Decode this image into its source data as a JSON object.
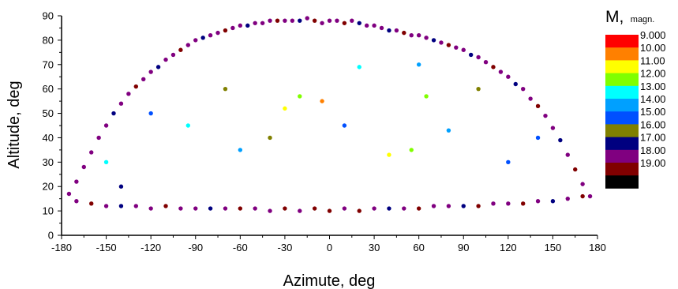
{
  "chart_data": {
    "type": "scatter",
    "title": "",
    "xlabel": "Azimute, deg",
    "ylabel": "Altitude, deg",
    "xlim": [
      -180,
      180
    ],
    "ylim": [
      0,
      90
    ],
    "x_ticks": [
      -180,
      -150,
      -120,
      -90,
      -60,
      -30,
      0,
      30,
      60,
      90,
      120,
      150,
      180
    ],
    "y_ticks": [
      0,
      10,
      20,
      30,
      40,
      50,
      60,
      70,
      80,
      90
    ],
    "x_tick_labels": [
      "-180",
      "-150",
      "-120",
      "-90",
      "-60",
      "-30",
      "0",
      "30",
      "60",
      "90",
      "120",
      "150",
      "180"
    ],
    "y_tick_labels": [
      "0",
      "10",
      "20",
      "30",
      "40",
      "50",
      "60",
      "70",
      "80",
      "90"
    ],
    "grid": false,
    "legend": {
      "placement": "right",
      "title_main": "M,",
      "title_sub": "magn.",
      "bins": [
        {
          "label": "9.000",
          "color": "#ff0000"
        },
        {
          "label": "10.00",
          "color": "#ff8000"
        },
        {
          "label": "11.00",
          "color": "#ffff00"
        },
        {
          "label": "12.00",
          "color": "#80ff00"
        },
        {
          "label": "13.00",
          "color": "#00ffff"
        },
        {
          "label": "14.00",
          "color": "#00a0ff"
        },
        {
          "label": "15.00",
          "color": "#0050ff"
        },
        {
          "label": "16.00",
          "color": "#808000"
        },
        {
          "label": "17.00",
          "color": "#000080"
        },
        {
          "label": "18.00",
          "color": "#800080"
        },
        {
          "label": "19.00",
          "color": "#800000"
        },
        {
          "label": "",
          "color": "#000000"
        }
      ]
    },
    "points": [
      [
        -175,
        17,
        18.5
      ],
      [
        -170,
        22,
        18.2
      ],
      [
        -165,
        28,
        18.7
      ],
      [
        -160,
        34,
        18.1
      ],
      [
        -155,
        40,
        18.9
      ],
      [
        -150,
        45,
        18.3
      ],
      [
        -145,
        50,
        17.4
      ],
      [
        -140,
        54,
        18.6
      ],
      [
        -135,
        58,
        18.2
      ],
      [
        -130,
        61,
        19.3
      ],
      [
        -125,
        64,
        18.4
      ],
      [
        -120,
        67,
        18.1
      ],
      [
        -115,
        69,
        17.6
      ],
      [
        -110,
        72,
        18.8
      ],
      [
        -105,
        74,
        18.3
      ],
      [
        -100,
        76,
        19.1
      ],
      [
        -95,
        78,
        18.5
      ],
      [
        -90,
        80,
        18.2
      ],
      [
        -85,
        81,
        17.9
      ],
      [
        -80,
        82,
        18.6
      ],
      [
        -75,
        83,
        18.1
      ],
      [
        -70,
        84,
        19.4
      ],
      [
        -65,
        85,
        18.3
      ],
      [
        -60,
        86,
        18.7
      ],
      [
        -55,
        86,
        17.5
      ],
      [
        -50,
        87,
        18.2
      ],
      [
        -45,
        87,
        18.9
      ],
      [
        -40,
        88,
        18.4
      ],
      [
        -35,
        88,
        19.2
      ],
      [
        -30,
        88,
        18.1
      ],
      [
        -25,
        88,
        18.6
      ],
      [
        -20,
        88,
        17.8
      ],
      [
        -15,
        89,
        18.3
      ],
      [
        -10,
        88,
        19.5
      ],
      [
        -5,
        87,
        18.2
      ],
      [
        0,
        88,
        18.5
      ],
      [
        5,
        88,
        18.1
      ],
      [
        10,
        87,
        19.2
      ],
      [
        15,
        88,
        18.4
      ],
      [
        20,
        87,
        17.7
      ],
      [
        25,
        86,
        18.6
      ],
      [
        30,
        86,
        18.2
      ],
      [
        35,
        85,
        18.9
      ],
      [
        40,
        84,
        17.1
      ],
      [
        45,
        84,
        18.3
      ],
      [
        50,
        83,
        19.1
      ],
      [
        55,
        82,
        18.4
      ],
      [
        60,
        82,
        18.2
      ],
      [
        65,
        81,
        18.7
      ],
      [
        70,
        80,
        17.6
      ],
      [
        75,
        79,
        18.5
      ],
      [
        80,
        78,
        19.3
      ],
      [
        85,
        77,
        18.1
      ],
      [
        90,
        76,
        18.4
      ],
      [
        95,
        74,
        17.9
      ],
      [
        100,
        73,
        18.6
      ],
      [
        105,
        71,
        18.2
      ],
      [
        110,
        69,
        19.2
      ],
      [
        115,
        67,
        18.3
      ],
      [
        120,
        65,
        18.8
      ],
      [
        125,
        62,
        17.4
      ],
      [
        130,
        60,
        18.5
      ],
      [
        135,
        56,
        18.1
      ],
      [
        140,
        53,
        19.4
      ],
      [
        145,
        49,
        18.3
      ],
      [
        150,
        44,
        18.7
      ],
      [
        155,
        39,
        17.8
      ],
      [
        160,
        33,
        18.4
      ],
      [
        165,
        27,
        19.1
      ],
      [
        170,
        21,
        18.2
      ],
      [
        175,
        16,
        18.6
      ],
      [
        -170,
        14,
        18.3
      ],
      [
        -160,
        13,
        19.2
      ],
      [
        -150,
        12,
        18.4
      ],
      [
        -140,
        12,
        17.6
      ],
      [
        -130,
        12,
        18.8
      ],
      [
        -120,
        11,
        18.2
      ],
      [
        -110,
        12,
        19.4
      ],
      [
        -100,
        11,
        18.5
      ],
      [
        -90,
        11,
        18.1
      ],
      [
        -80,
        11,
        17.9
      ],
      [
        -70,
        11,
        18.6
      ],
      [
        -60,
        11,
        19.3
      ],
      [
        -50,
        11,
        18.2
      ],
      [
        -40,
        10,
        18.7
      ],
      [
        -30,
        11,
        19.1
      ],
      [
        -20,
        10,
        18.4
      ],
      [
        -10,
        11,
        19.6
      ],
      [
        0,
        10,
        19.5
      ],
      [
        10,
        11,
        18.8
      ],
      [
        20,
        10,
        19.2
      ],
      [
        30,
        11,
        18.3
      ],
      [
        40,
        11,
        17.7
      ],
      [
        50,
        11,
        18.9
      ],
      [
        60,
        11,
        19.4
      ],
      [
        70,
        12,
        18.2
      ],
      [
        80,
        12,
        18.6
      ],
      [
        90,
        12,
        17.8
      ],
      [
        100,
        12,
        19.1
      ],
      [
        110,
        13,
        18.4
      ],
      [
        120,
        13,
        18.2
      ],
      [
        130,
        13,
        19.3
      ],
      [
        140,
        14,
        18.5
      ],
      [
        150,
        14,
        17.6
      ],
      [
        160,
        15,
        18.7
      ],
      [
        170,
        16,
        19.2
      ],
      [
        -20,
        57,
        12.5
      ],
      [
        -5,
        55,
        10.6
      ],
      [
        -30,
        52,
        11.4
      ],
      [
        40,
        33,
        11.5
      ],
      [
        20,
        69,
        13.5
      ],
      [
        55,
        35,
        12.7
      ],
      [
        65,
        57,
        12.4
      ],
      [
        -95,
        45,
        13.8
      ],
      [
        -60,
        35,
        14.2
      ],
      [
        80,
        43,
        14.6
      ],
      [
        -150,
        30,
        13.4
      ],
      [
        120,
        30,
        15.3
      ],
      [
        -120,
        50,
        15.4
      ],
      [
        100,
        60,
        16.2
      ],
      [
        -40,
        40,
        16.5
      ],
      [
        10,
        45,
        15.8
      ],
      [
        140,
        40,
        15.6
      ],
      [
        -70,
        60,
        16.8
      ],
      [
        60,
        70,
        14.7
      ],
      [
        -140,
        20,
        17.2
      ]
    ]
  }
}
